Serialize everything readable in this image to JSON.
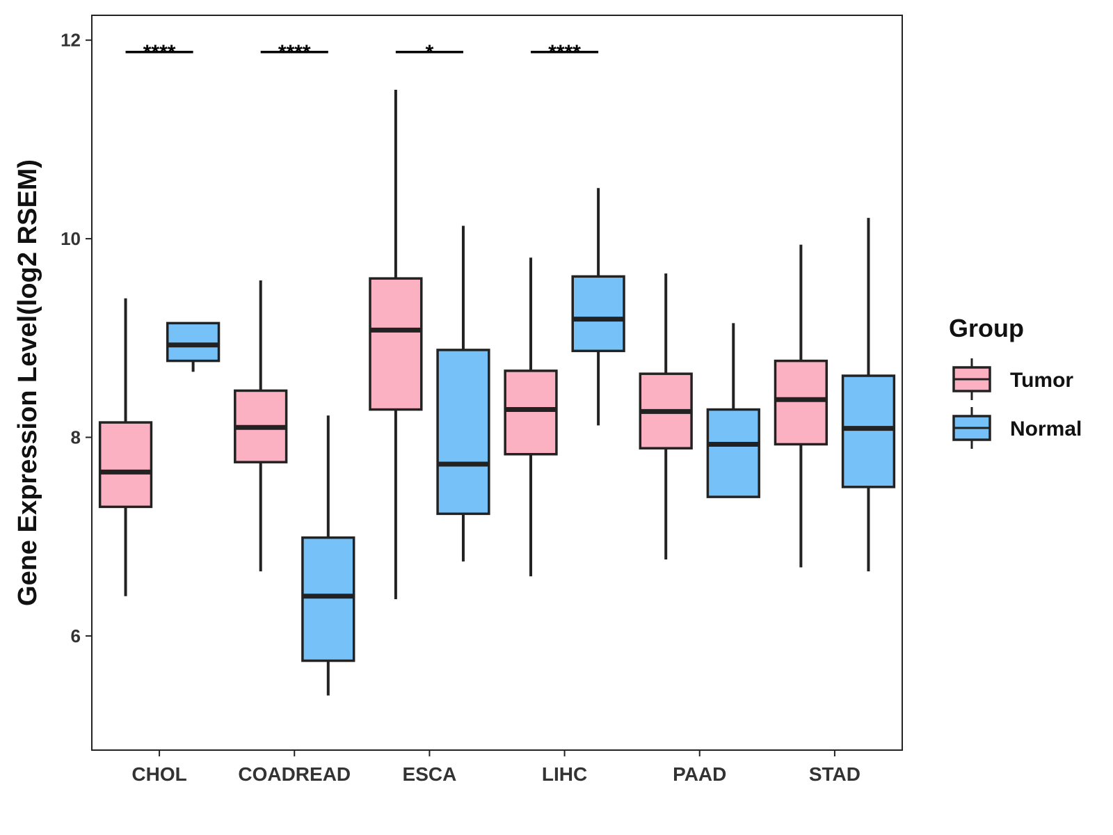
{
  "chart_data": {
    "type": "boxplot",
    "title": "",
    "xlabel": "",
    "ylabel": "Gene Expression Level(log2 RSEM)",
    "ylim": [
      4.85,
      12.25
    ],
    "yticks": [
      6,
      8,
      10,
      12
    ],
    "grid": false,
    "categories": [
      "CHOL",
      "COADREAD",
      "ESCA",
      "LIHC",
      "PAAD",
      "STAD"
    ],
    "legend": {
      "title": "Group",
      "position": "right",
      "entries": [
        {
          "name": "Tumor",
          "color": "#FBB1C1"
        },
        {
          "name": "Normal",
          "color": "#76C1F8"
        }
      ]
    },
    "series": [
      {
        "name": "Tumor",
        "color": "#FBB1C1",
        "boxes": [
          {
            "min": 6.4,
            "q1": 7.3,
            "median": 7.65,
            "q3": 8.15,
            "max": 9.4
          },
          {
            "min": 6.65,
            "q1": 7.75,
            "median": 8.1,
            "q3": 8.47,
            "max": 9.58
          },
          {
            "min": 6.37,
            "q1": 8.28,
            "median": 9.08,
            "q3": 9.6,
            "max": 11.5
          },
          {
            "min": 6.6,
            "q1": 7.83,
            "median": 8.28,
            "q3": 8.67,
            "max": 9.81
          },
          {
            "min": 6.77,
            "q1": 7.89,
            "median": 8.26,
            "q3": 8.64,
            "max": 9.65
          },
          {
            "min": 6.69,
            "q1": 7.93,
            "median": 8.38,
            "q3": 8.77,
            "max": 9.94
          }
        ]
      },
      {
        "name": "Normal",
        "color": "#76C1F8",
        "boxes": [
          {
            "min": 8.66,
            "q1": 8.77,
            "median": 8.93,
            "q3": 9.15,
            "max": 9.15
          },
          {
            "min": 5.4,
            "q1": 5.75,
            "median": 6.4,
            "q3": 6.99,
            "max": 8.22
          },
          {
            "min": 6.75,
            "q1": 7.23,
            "median": 7.73,
            "q3": 8.88,
            "max": 10.13
          },
          {
            "min": 8.12,
            "q1": 8.87,
            "median": 9.19,
            "q3": 9.62,
            "max": 10.51
          },
          {
            "min": 7.4,
            "q1": 7.4,
            "median": 7.93,
            "q3": 8.28,
            "max": 9.15
          },
          {
            "min": 6.65,
            "q1": 7.5,
            "median": 8.09,
            "q3": 8.62,
            "max": 10.21
          }
        ]
      }
    ],
    "significance": [
      {
        "category": "CHOL",
        "label": "****"
      },
      {
        "category": "COADREAD",
        "label": "****"
      },
      {
        "category": "ESCA",
        "label": "*"
      },
      {
        "category": "LIHC",
        "label": "****"
      }
    ],
    "significance_y": 11.88
  }
}
